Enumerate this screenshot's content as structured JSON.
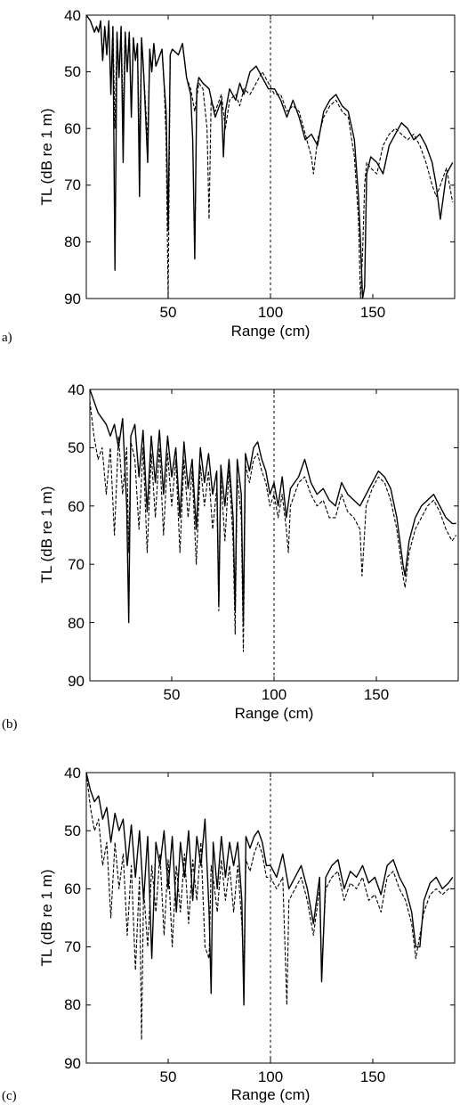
{
  "chart_data": [
    {
      "type": "line",
      "panel_label": "a)",
      "xlabel": "Range (cm)",
      "ylabel": "TL (dB re 1 m)",
      "xlim": [
        10,
        190
      ],
      "ylim": [
        90,
        40
      ],
      "y_inverted": true,
      "xticks": [
        50,
        100,
        150
      ],
      "yticks": [
        40,
        50,
        60,
        70,
        80,
        90
      ],
      "reference_line_x": 100,
      "series": [
        {
          "style": "solid",
          "x": [
            10,
            12,
            14,
            15,
            16,
            17,
            18,
            19,
            20,
            21,
            22,
            23,
            24,
            25,
            26,
            27,
            28,
            29,
            30,
            31,
            32,
            33,
            34,
            35,
            36,
            37,
            38,
            40,
            41,
            42,
            43,
            44,
            46,
            47,
            48,
            49,
            50,
            51,
            52,
            55,
            57,
            59,
            61,
            62,
            63,
            64,
            65,
            67,
            70,
            73,
            76,
            77,
            78,
            80,
            83,
            85,
            87,
            90,
            93,
            96,
            99,
            102,
            105,
            108,
            111,
            114,
            117,
            120,
            123,
            126,
            129,
            132,
            135,
            138,
            141,
            143,
            144,
            145,
            146,
            147,
            149,
            152,
            155,
            158,
            161,
            164,
            167,
            170,
            173,
            176,
            179,
            181,
            183,
            186,
            189
          ],
          "y": [
            40,
            41,
            43,
            42,
            43,
            41,
            48,
            42,
            47,
            41,
            54,
            42,
            85,
            43,
            51,
            42,
            66,
            43,
            50,
            43,
            58,
            44,
            48,
            45,
            72,
            44,
            50,
            66,
            46,
            50,
            45,
            49,
            47,
            46,
            52,
            57,
            78,
            47,
            46,
            47,
            45,
            51,
            54,
            62,
            83,
            53,
            51,
            52,
            53,
            58,
            55,
            65,
            57,
            53,
            55,
            52,
            54,
            50,
            49,
            51,
            53,
            53,
            55,
            58,
            55,
            58,
            62,
            61,
            63,
            57,
            55,
            54,
            56,
            57,
            62,
            72,
            80,
            90,
            88,
            68,
            65,
            66,
            68,
            63,
            61,
            59,
            60,
            62,
            61,
            63,
            66,
            70,
            76,
            68,
            66
          ]
        },
        {
          "style": "dashed",
          "x": [
            10,
            12,
            14,
            15,
            16,
            17,
            18,
            19,
            20,
            21,
            22,
            23,
            24,
            25,
            26,
            27,
            28,
            29,
            30,
            31,
            32,
            33,
            34,
            35,
            36,
            37,
            38,
            40,
            41,
            42,
            43,
            44,
            46,
            47,
            48,
            49,
            50,
            51,
            52,
            55,
            57,
            59,
            61,
            63,
            65,
            67,
            69,
            70,
            71,
            73,
            76,
            78,
            80,
            83,
            85,
            87,
            90,
            93,
            96,
            99,
            102,
            105,
            108,
            111,
            114,
            117,
            120,
            121,
            123,
            126,
            129,
            132,
            135,
            138,
            141,
            143,
            144,
            145,
            146,
            147,
            149,
            152,
            155,
            158,
            161,
            164,
            167,
            170,
            173,
            176,
            179,
            181,
            183,
            186,
            189
          ],
          "y": [
            40,
            41,
            43,
            42,
            43,
            41,
            48,
            42,
            47,
            41,
            54,
            42,
            60,
            43,
            51,
            42,
            58,
            43,
            50,
            43,
            57,
            44,
            48,
            45,
            64,
            44,
            50,
            62,
            46,
            50,
            45,
            49,
            47,
            46,
            52,
            62,
            90,
            47,
            46,
            47,
            45,
            51,
            53,
            57,
            52,
            53,
            60,
            76,
            55,
            57,
            54,
            60,
            55,
            54,
            56,
            53,
            54,
            52,
            50,
            52,
            54,
            54,
            57,
            56,
            57,
            61,
            65,
            68,
            62,
            58,
            56,
            55,
            57,
            58,
            65,
            76,
            90,
            82,
            70,
            66,
            67,
            68,
            63,
            61,
            60,
            61,
            62,
            61,
            63,
            66,
            70,
            72,
            70,
            67,
            73
          ]
        }
      ]
    },
    {
      "type": "line",
      "panel_label": "(b)",
      "xlabel": "Range (cm)",
      "ylabel": "TL (dB re 1 m)",
      "xlim": [
        10,
        190
      ],
      "ylim": [
        90,
        40
      ],
      "y_inverted": true,
      "xticks": [
        50,
        100,
        150
      ],
      "yticks": [
        40,
        50,
        60,
        70,
        80,
        90
      ],
      "reference_line_x": 100,
      "series": [
        {
          "style": "solid",
          "x": [
            10,
            12,
            14,
            16,
            18,
            20,
            22,
            24,
            26,
            28,
            29,
            30,
            32,
            34,
            36,
            38,
            40,
            42,
            44,
            46,
            48,
            50,
            52,
            54,
            56,
            58,
            60,
            62,
            64,
            66,
            68,
            70,
            72,
            73,
            74,
            76,
            78,
            80,
            81,
            82,
            84,
            85,
            86,
            88,
            90,
            92,
            94,
            96,
            98,
            100,
            102,
            104,
            106,
            108,
            110,
            112,
            115,
            118,
            121,
            124,
            127,
            130,
            133,
            136,
            139,
            142,
            145,
            148,
            151,
            154,
            157,
            160,
            163,
            164,
            166,
            169,
            172,
            175,
            178,
            181,
            184,
            187,
            189
          ],
          "y": [
            40,
            42,
            44,
            45,
            46,
            48,
            46,
            50,
            45,
            60,
            80,
            48,
            46,
            55,
            47,
            61,
            48,
            56,
            47,
            58,
            48,
            55,
            50,
            62,
            49,
            57,
            52,
            64,
            50,
            56,
            51,
            58,
            54,
            77,
            53,
            60,
            52,
            62,
            78,
            52,
            58,
            80,
            51,
            54,
            50,
            49,
            52,
            54,
            58,
            56,
            60,
            55,
            62,
            57,
            56,
            55,
            52,
            56,
            58,
            57,
            59,
            60,
            56,
            58,
            59,
            60,
            58,
            56,
            54,
            55,
            57,
            62,
            70,
            72,
            66,
            62,
            60,
            59,
            58,
            60,
            62,
            63,
            63
          ]
        },
        {
          "style": "dashed",
          "x": [
            10,
            12,
            14,
            16,
            18,
            20,
            22,
            24,
            26,
            28,
            29,
            30,
            32,
            34,
            36,
            38,
            40,
            42,
            44,
            46,
            48,
            50,
            52,
            54,
            56,
            58,
            60,
            62,
            64,
            66,
            68,
            70,
            72,
            73,
            74,
            76,
            78,
            80,
            81,
            82,
            84,
            85,
            86,
            88,
            90,
            92,
            94,
            96,
            98,
            100,
            102,
            104,
            106,
            107,
            108,
            110,
            112,
            115,
            118,
            121,
            124,
            127,
            130,
            133,
            136,
            139,
            142,
            143,
            145,
            148,
            151,
            154,
            157,
            160,
            163,
            164,
            166,
            169,
            172,
            175,
            178,
            181,
            184,
            187,
            189
          ],
          "y": [
            42,
            48,
            52,
            50,
            58,
            50,
            65,
            48,
            58,
            50,
            68,
            49,
            52,
            64,
            50,
            68,
            51,
            62,
            50,
            65,
            51,
            60,
            52,
            68,
            52,
            62,
            54,
            70,
            53,
            60,
            54,
            64,
            57,
            78,
            55,
            66,
            54,
            66,
            82,
            55,
            62,
            85,
            53,
            56,
            52,
            51,
            54,
            56,
            60,
            58,
            62,
            58,
            64,
            68,
            60,
            58,
            56,
            55,
            58,
            60,
            59,
            62,
            62,
            58,
            61,
            62,
            64,
            72,
            60,
            57,
            55,
            56,
            59,
            64,
            72,
            74,
            68,
            64,
            62,
            60,
            59,
            61,
            64,
            66,
            65
          ]
        }
      ]
    },
    {
      "type": "line",
      "panel_label": "(c)",
      "xlabel": "Range (cm)",
      "ylabel": "TL (dB re 1 m)",
      "xlim": [
        10,
        190
      ],
      "ylim": [
        90,
        40
      ],
      "y_inverted": true,
      "xticks": [
        50,
        100,
        150
      ],
      "yticks": [
        40,
        50,
        60,
        70,
        80,
        90
      ],
      "reference_line_x": 100,
      "series": [
        {
          "style": "solid",
          "x": [
            10,
            12,
            14,
            16,
            18,
            20,
            22,
            24,
            26,
            28,
            30,
            32,
            34,
            36,
            38,
            40,
            42,
            44,
            46,
            48,
            50,
            52,
            54,
            56,
            58,
            60,
            62,
            64,
            66,
            68,
            70,
            71,
            72,
            74,
            76,
            78,
            80,
            82,
            84,
            86,
            87,
            88,
            90,
            92,
            94,
            96,
            98,
            100,
            103,
            106,
            109,
            112,
            115,
            118,
            121,
            124,
            125,
            127,
            130,
            133,
            136,
            139,
            142,
            145,
            148,
            151,
            154,
            157,
            160,
            163,
            166,
            169,
            171,
            173,
            175,
            178,
            181,
            184,
            187,
            189
          ],
          "y": [
            40,
            43,
            45,
            44,
            48,
            46,
            52,
            47,
            50,
            48,
            56,
            49,
            58,
            50,
            62,
            51,
            72,
            52,
            56,
            50,
            60,
            51,
            64,
            52,
            58,
            50,
            62,
            51,
            56,
            48,
            64,
            78,
            52,
            60,
            51,
            58,
            52,
            56,
            52,
            62,
            80,
            51,
            53,
            51,
            50,
            52,
            56,
            56,
            58,
            54,
            60,
            58,
            56,
            60,
            66,
            58,
            76,
            58,
            56,
            55,
            60,
            57,
            58,
            56,
            59,
            58,
            61,
            56,
            55,
            58,
            60,
            64,
            70,
            70,
            62,
            59,
            58,
            60,
            59,
            58
          ]
        },
        {
          "style": "dashed",
          "x": [
            10,
            12,
            14,
            16,
            18,
            20,
            22,
            24,
            26,
            28,
            30,
            32,
            34,
            36,
            37,
            38,
            40,
            42,
            44,
            46,
            48,
            50,
            52,
            54,
            56,
            58,
            60,
            62,
            64,
            66,
            68,
            70,
            71,
            72,
            74,
            76,
            78,
            80,
            82,
            84,
            86,
            87,
            88,
            90,
            92,
            94,
            96,
            98,
            100,
            103,
            106,
            108,
            109,
            112,
            115,
            118,
            121,
            124,
            125,
            127,
            130,
            133,
            136,
            139,
            142,
            145,
            148,
            151,
            154,
            157,
            160,
            163,
            166,
            169,
            171,
            173,
            175,
            178,
            181,
            184,
            187,
            189
          ],
          "y": [
            40,
            46,
            50,
            48,
            56,
            52,
            65,
            52,
            60,
            54,
            68,
            56,
            74,
            58,
            86,
            60,
            70,
            56,
            64,
            54,
            68,
            55,
            70,
            56,
            64,
            54,
            66,
            55,
            62,
            52,
            70,
            72,
            56,
            58,
            64,
            55,
            62,
            56,
            64,
            56,
            66,
            74,
            55,
            57,
            54,
            52,
            54,
            58,
            58,
            60,
            58,
            80,
            62,
            60,
            58,
            62,
            68,
            60,
            74,
            60,
            58,
            57,
            62,
            59,
            60,
            58,
            62,
            61,
            64,
            58,
            57,
            60,
            62,
            66,
            72,
            68,
            64,
            61,
            60,
            61,
            60,
            60
          ]
        }
      ]
    }
  ]
}
